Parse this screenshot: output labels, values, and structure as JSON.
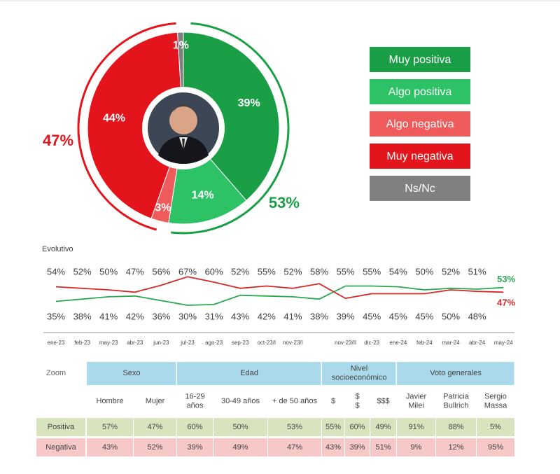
{
  "chart_data": [
    {
      "type": "donut",
      "categories": [
        "Muy positiva",
        "Algo positiva",
        "Algo negativa",
        "Muy negativa",
        "Ns/Nc"
      ],
      "values": [
        39,
        14,
        3,
        44,
        1
      ],
      "value_labels": [
        "39%",
        "14%",
        "3%",
        "44%",
        "1%"
      ],
      "colors": [
        "#1a9e46",
        "#2ec266",
        "#ef5a5a",
        "#e3141c",
        "#808080"
      ],
      "totals": {
        "values": [
          53,
          47
        ],
        "value_labels": [
          "53%",
          "47%"
        ],
        "colors": [
          "#1a9e46",
          "#e3141c"
        ]
      }
    },
    {
      "type": "line",
      "title": "Evolutivo",
      "categories": [
        "ene-23",
        "feb-23",
        "may-23",
        "abr-23",
        "jun-23",
        "jul-23",
        "ago-23",
        "sep-23",
        "oct-23/I",
        "nov-23/I",
        null,
        "nov-23/II",
        "dic-23",
        "ene-24",
        "feb-24",
        "mar-24",
        "abr-24",
        "may-24"
      ],
      "series": [
        {
          "color": "#2aa84f",
          "values": [
            35,
            38,
            41,
            42,
            36,
            30,
            31,
            43,
            42,
            41,
            38,
            55,
            55,
            54,
            50,
            52,
            51,
            53
          ],
          "value_labels": [
            "35%",
            "38%",
            "41%",
            "42%",
            "36%",
            "30%",
            "31%",
            "43%",
            "42%",
            "41%",
            "38%",
            "55%",
            "55%",
            "54%",
            "50%",
            "52%",
            "51%",
            "53%"
          ]
        },
        {
          "color": "#d42a2a",
          "values": [
            54,
            52,
            50,
            47,
            56,
            67,
            60,
            52,
            55,
            52,
            58,
            39,
            45,
            45,
            45,
            50,
            48,
            47
          ],
          "value_labels": [
            "54%",
            "52%",
            "50%",
            "47%",
            "56%",
            "67%",
            "60%",
            "52%",
            "55%",
            "52%",
            "58%",
            "39%",
            "45%",
            "45%",
            "45%",
            "50%",
            "48%",
            "47%"
          ]
        }
      ]
    }
  ],
  "table": {
    "corner": "Zoom",
    "groups": [
      {
        "label": [
          "Sexo"
        ],
        "span": 2
      },
      {
        "label": [
          "Edad"
        ],
        "span": 3
      },
      {
        "label": [
          "Nivel",
          "socioeconómico"
        ],
        "span": 3
      },
      {
        "label": [
          "Voto generales"
        ],
        "span": 3
      }
    ],
    "columns": [
      [
        "Hombre"
      ],
      [
        "Mujer"
      ],
      [
        "16-29",
        "años"
      ],
      [
        "30-49 años"
      ],
      [
        "+ de 50 años"
      ],
      [
        "$"
      ],
      [
        "$",
        "$"
      ],
      [
        "$$$"
      ],
      [
        "Javier",
        "Milei"
      ],
      [
        "Patricia",
        "Bullrich"
      ],
      [
        "Sergio",
        "Massa"
      ]
    ],
    "rows": [
      {
        "label": "Positiva",
        "cells": [
          "57%",
          "47%",
          "60%",
          "50%",
          "53%",
          "55%",
          "60%",
          "49%",
          "91%",
          "88%",
          "5%"
        ]
      },
      {
        "label": "Negativa",
        "cells": [
          "43%",
          "52%",
          "39%",
          "49%",
          "47%",
          "43%",
          "39%",
          "51%",
          "9%",
          "12%",
          "95%"
        ]
      }
    ]
  }
}
